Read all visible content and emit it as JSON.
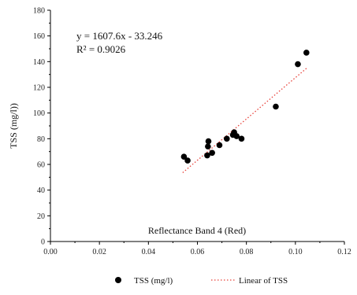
{
  "chart_data": {
    "type": "scatter",
    "xlabel": "Reflectance Band 4 (Red)",
    "ylabel": "TSS (mg/l))",
    "xlim": [
      0.0,
      0.12
    ],
    "ylim": [
      0,
      180
    ],
    "x_ticks": [
      "0.00",
      "0.02",
      "0.04",
      "0.06",
      "0.08",
      "0.10",
      "0.12"
    ],
    "y_ticks": [
      "0",
      "20",
      "40",
      "60",
      "80",
      "100",
      "120",
      "140",
      "160",
      "180"
    ],
    "grid": false,
    "legend_position": "bottom",
    "series": [
      {
        "name": "TSS (mg/l)",
        "color": "#000000",
        "points": [
          {
            "x": 0.0545,
            "y": 66
          },
          {
            "x": 0.056,
            "y": 63
          },
          {
            "x": 0.064,
            "y": 67
          },
          {
            "x": 0.0643,
            "y": 74
          },
          {
            "x": 0.0645,
            "y": 78
          },
          {
            "x": 0.066,
            "y": 69
          },
          {
            "x": 0.069,
            "y": 75
          },
          {
            "x": 0.072,
            "y": 80
          },
          {
            "x": 0.0745,
            "y": 83
          },
          {
            "x": 0.075,
            "y": 85
          },
          {
            "x": 0.076,
            "y": 82
          },
          {
            "x": 0.078,
            "y": 80
          },
          {
            "x": 0.092,
            "y": 105
          },
          {
            "x": 0.101,
            "y": 138
          },
          {
            "x": 0.1045,
            "y": 147
          }
        ]
      }
    ],
    "trendline": {
      "name": "Linear of TSS",
      "color": "#e8413a",
      "style": "dotted",
      "slope": 1607.6,
      "intercept": -33.246,
      "x_range": [
        0.054,
        0.1045
      ]
    },
    "annotations": {
      "equation": "y = 1607.6x - 33.246",
      "r_squared": "R² = 0.9026"
    }
  }
}
